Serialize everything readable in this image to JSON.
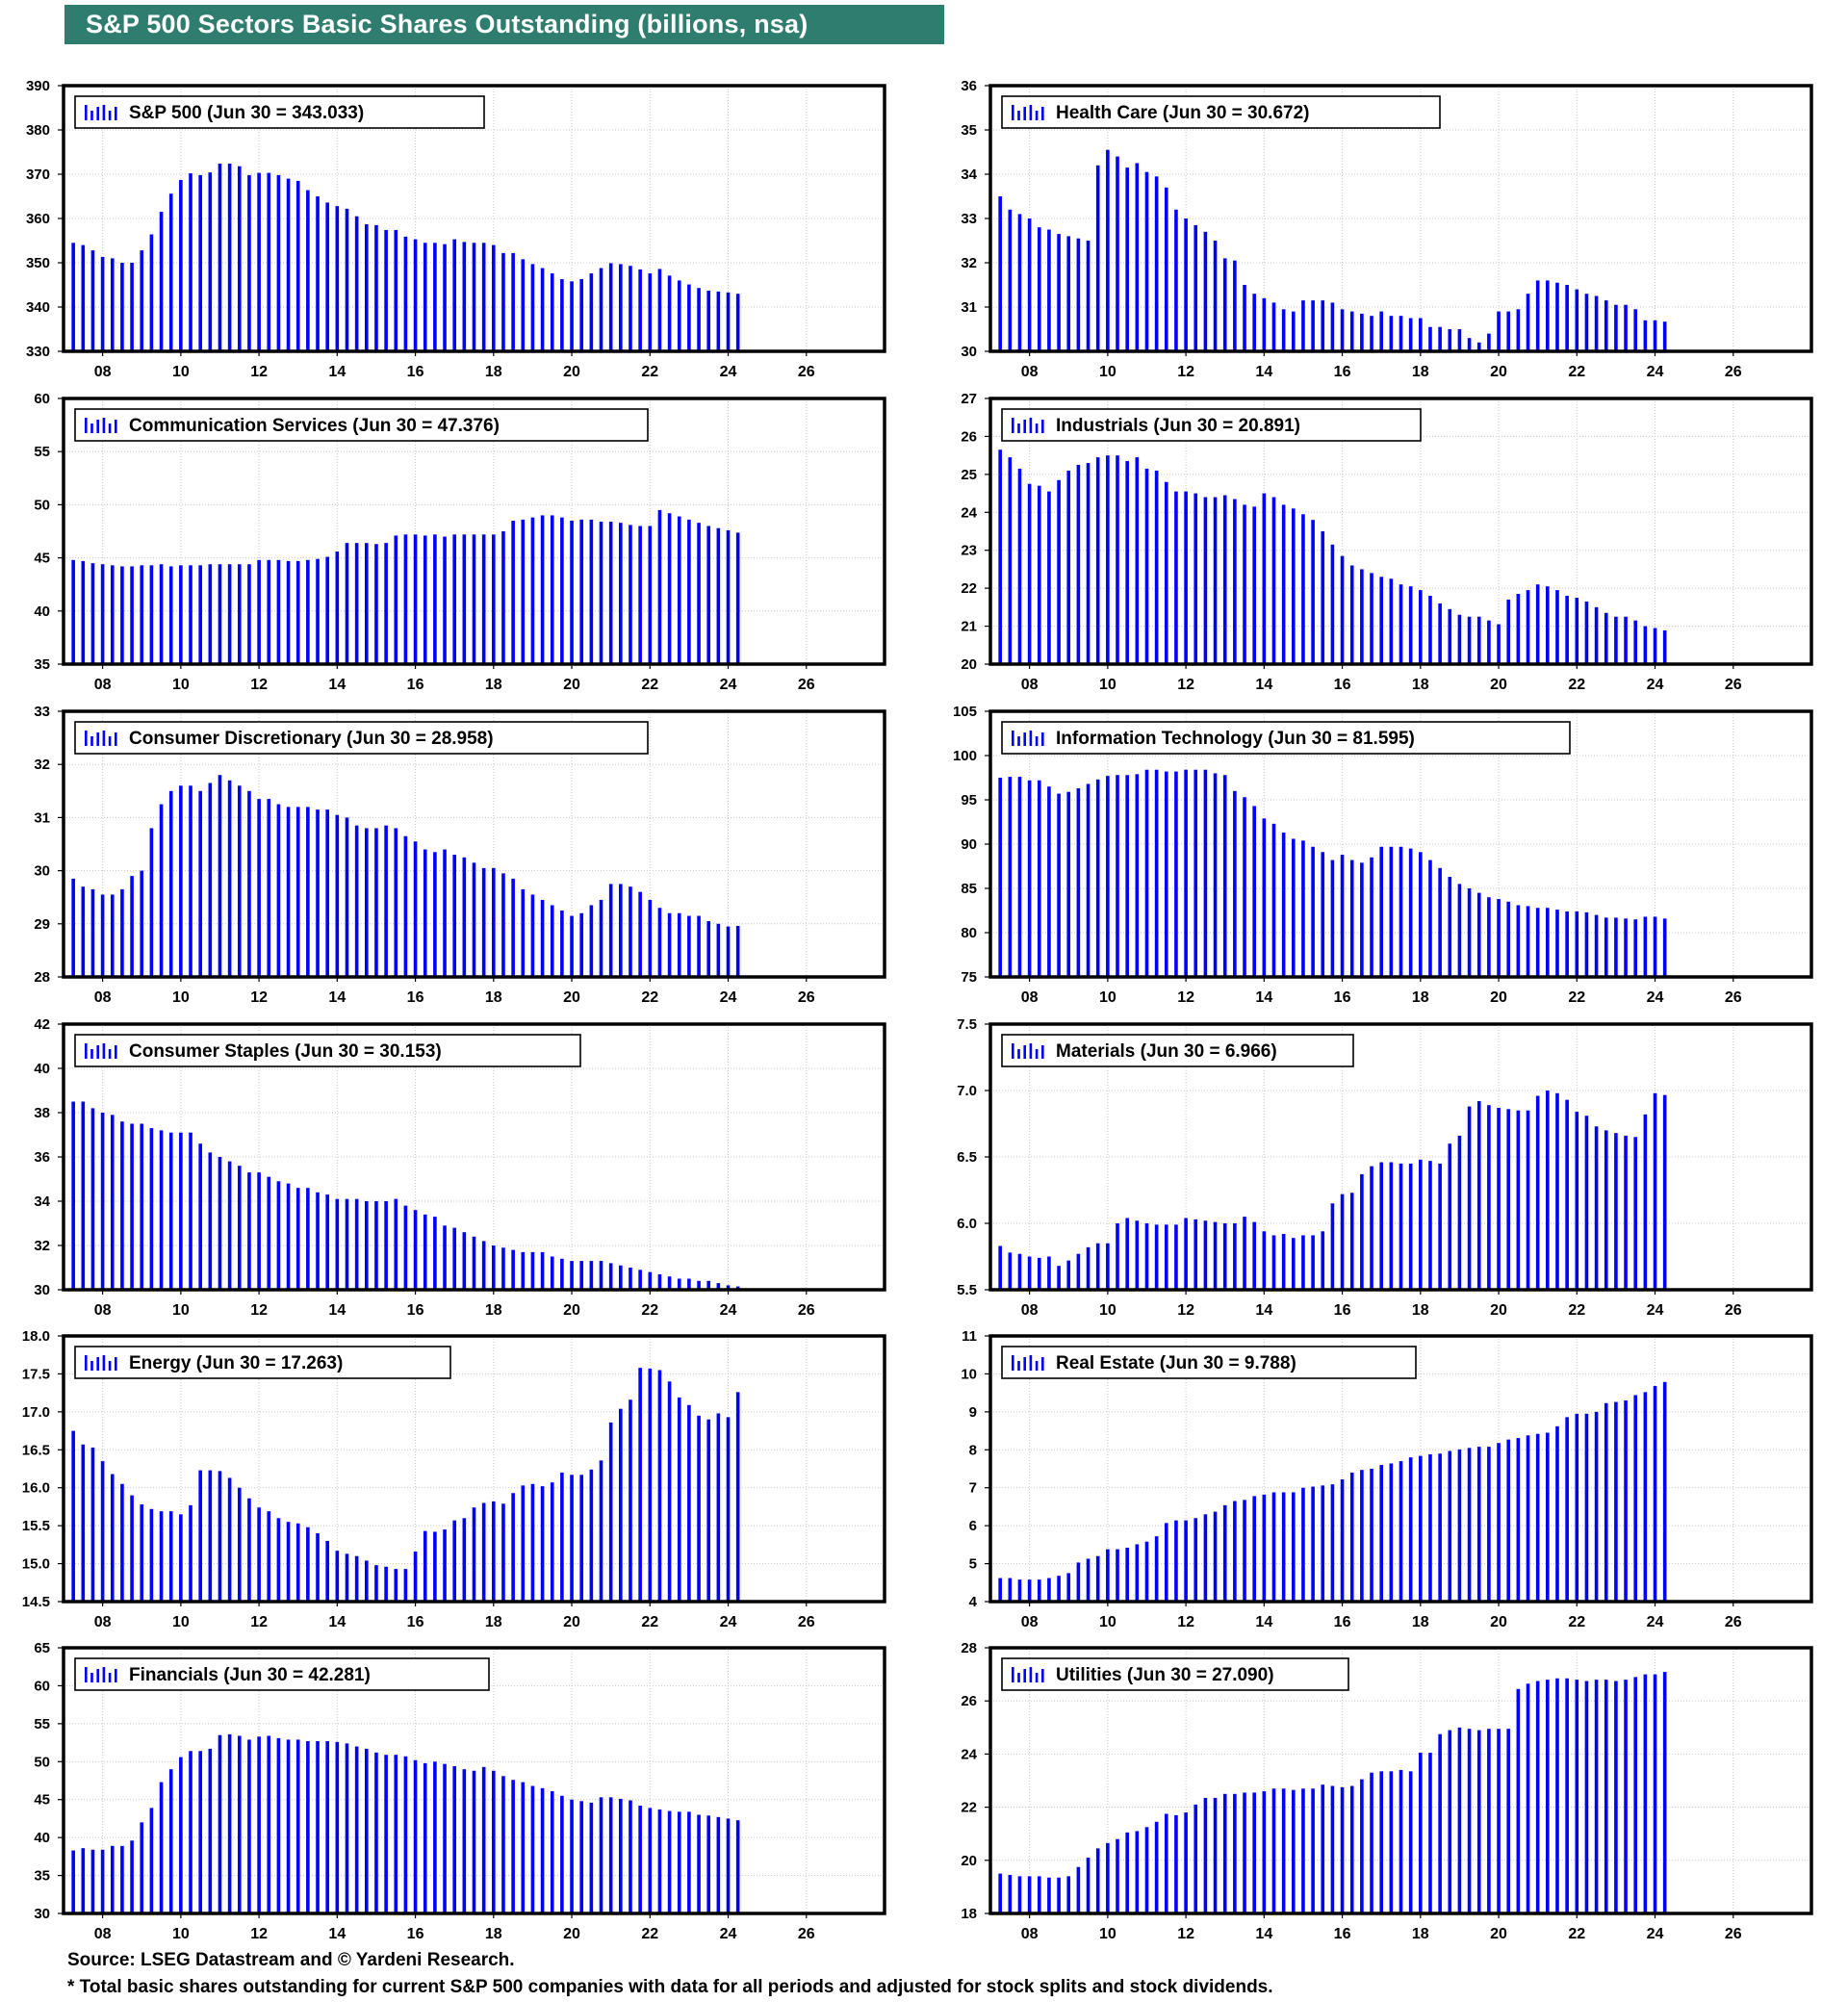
{
  "title": "S&P 500 Sectors Basic Shares Outstanding (billions, nsa)",
  "footer": {
    "source": "Source: LSEG Datastream and © Yardeni Research.",
    "note": "* Total basic shares outstanding for current S&P 500 companies with data for all periods and adjusted for stock splits and stock dividends."
  },
  "colors": {
    "bar": "#0000ff",
    "banner": "#2e7d6e",
    "grid": "#c8c8c8",
    "frame": "#000000"
  },
  "x_axis": {
    "ticks": [
      "08",
      "10",
      "12",
      "14",
      "16",
      "18",
      "20",
      "22",
      "24",
      "26"
    ],
    "start_year": 2007.0,
    "end_year": 2028.0
  },
  "chart_data": [
    {
      "type": "bar",
      "title": "S&P 500 (Jun 30 = 343.033)",
      "legend": "S&P 500 (Jun 30 = 343.033)",
      "ylim": [
        330,
        390
      ],
      "yticks": [
        "390",
        "380",
        "370",
        "360",
        "350",
        "340",
        "330"
      ],
      "x_start": 2007.25,
      "x_step": 0.25,
      "values": [
        354.5,
        354,
        352.8,
        351.3,
        351,
        350,
        350,
        352.8,
        356.4,
        361.5,
        365.6,
        368.7,
        370.2,
        369.8,
        370.4,
        372.4,
        372.4,
        371.8,
        369.8,
        370.3,
        370.3,
        369.8,
        369,
        368.5,
        366.4,
        365,
        363.6,
        362.8,
        362.2,
        360.5,
        358.7,
        358.5,
        357.4,
        357.4,
        355.9,
        355.3,
        354.5,
        354.5,
        354.2,
        355.3,
        354.7,
        354.5,
        354.5,
        354,
        352.2,
        352.2,
        350.8,
        349.7,
        348.8,
        347.6,
        346.3,
        345.8,
        346.3,
        347.6,
        348.8,
        349.9,
        349.7,
        349.3,
        348.5,
        347.6,
        348.6,
        347.1,
        346,
        345.1,
        344.3,
        343.7,
        343.5,
        343.3,
        343
      ]
    },
    {
      "type": "bar",
      "title": "Health Care (Jun 30 = 30.672)",
      "legend": "Health Care (Jun 30 = 30.672)",
      "ylim": [
        30,
        36
      ],
      "yticks": [
        "36",
        "35",
        "34",
        "33",
        "32",
        "31",
        "30"
      ],
      "x_start": 2007.25,
      "x_step": 0.25,
      "values": [
        33.5,
        33.2,
        33.1,
        33,
        32.8,
        32.75,
        32.65,
        32.6,
        32.55,
        32.5,
        34.2,
        34.55,
        34.4,
        34.15,
        34.25,
        34.05,
        33.95,
        33.7,
        33.2,
        33,
        32.85,
        32.7,
        32.5,
        32.1,
        32.05,
        31.5,
        31.3,
        31.2,
        31.1,
        30.95,
        30.9,
        31.15,
        31.15,
        31.15,
        31.1,
        30.95,
        30.9,
        30.85,
        30.8,
        30.9,
        30.8,
        30.8,
        30.75,
        30.75,
        30.55,
        30.55,
        30.5,
        30.5,
        30.3,
        30.2,
        30.4,
        30.9,
        30.9,
        30.95,
        31.3,
        31.6,
        31.6,
        31.55,
        31.5,
        31.4,
        31.3,
        31.25,
        31.15,
        31.05,
        31.05,
        30.95,
        30.7,
        30.7,
        30.67
      ]
    },
    {
      "type": "bar",
      "title": "Communication Services (Jun 30 = 47.376)",
      "legend": "Communication Services (Jun 30 = 47.376)",
      "ylim": [
        35,
        60
      ],
      "yticks": [
        "60",
        "55",
        "50",
        "45",
        "40",
        "35"
      ],
      "x_start": 2007.25,
      "x_step": 0.25,
      "values": [
        44.8,
        44.7,
        44.5,
        44.4,
        44.3,
        44.2,
        44.2,
        44.3,
        44.3,
        44.4,
        44.2,
        44.3,
        44.3,
        44.3,
        44.4,
        44.4,
        44.4,
        44.4,
        44.4,
        44.8,
        44.8,
        44.8,
        44.7,
        44.7,
        44.8,
        44.9,
        45.1,
        45.6,
        46.4,
        46.4,
        46.4,
        46.3,
        46.4,
        47.1,
        47.2,
        47.2,
        47.1,
        47.2,
        47.0,
        47.2,
        47.2,
        47.2,
        47.2,
        47.2,
        47.5,
        48.5,
        48.6,
        48.8,
        49.0,
        49.0,
        48.8,
        48.5,
        48.6,
        48.6,
        48.4,
        48.4,
        48.3,
        48.1,
        48.0,
        48.0,
        49.5,
        49.2,
        48.9,
        48.6,
        48.3,
        48.0,
        47.8,
        47.6,
        47.376
      ]
    },
    {
      "type": "bar",
      "title": "Industrials (Jun 30 = 20.891)",
      "legend": "Industrials (Jun 30 = 20.891)",
      "ylim": [
        20,
        27
      ],
      "yticks": [
        "27",
        "26",
        "25",
        "24",
        "23",
        "22",
        "21",
        "20"
      ],
      "x_start": 2007.25,
      "x_step": 0.25,
      "values": [
        25.65,
        25.45,
        25.15,
        24.75,
        24.7,
        24.55,
        24.85,
        25.1,
        25.25,
        25.3,
        25.45,
        25.5,
        25.5,
        25.35,
        25.45,
        25.15,
        25.1,
        24.8,
        24.55,
        24.55,
        24.5,
        24.4,
        24.4,
        24.45,
        24.35,
        24.2,
        24.15,
        24.5,
        24.4,
        24.2,
        24.1,
        23.95,
        23.8,
        23.5,
        23.15,
        22.85,
        22.6,
        22.5,
        22.4,
        22.3,
        22.25,
        22.1,
        22.05,
        21.95,
        21.8,
        21.6,
        21.45,
        21.3,
        21.25,
        21.25,
        21.15,
        21.05,
        21.7,
        21.85,
        21.95,
        22.1,
        22.05,
        21.95,
        21.8,
        21.75,
        21.65,
        21.5,
        21.35,
        21.25,
        21.25,
        21.15,
        21.0,
        20.95,
        20.89
      ]
    },
    {
      "type": "bar",
      "title": "Consumer Discretionary (Jun 30 = 28.958)",
      "legend": "Consumer Discretionary (Jun 30 = 28.958)",
      "ylim": [
        28,
        33
      ],
      "yticks": [
        "33",
        "32",
        "31",
        "30",
        "29",
        "28"
      ],
      "x_start": 2007.25,
      "x_step": 0.25,
      "values": [
        29.85,
        29.7,
        29.65,
        29.55,
        29.55,
        29.65,
        29.9,
        30.0,
        30.8,
        31.25,
        31.5,
        31.6,
        31.6,
        31.5,
        31.65,
        31.8,
        31.7,
        31.6,
        31.5,
        31.35,
        31.35,
        31.25,
        31.2,
        31.2,
        31.2,
        31.15,
        31.15,
        31.05,
        31.0,
        30.85,
        30.8,
        30.8,
        30.85,
        30.8,
        30.65,
        30.55,
        30.4,
        30.35,
        30.4,
        30.3,
        30.25,
        30.15,
        30.05,
        30.05,
        29.95,
        29.85,
        29.65,
        29.55,
        29.45,
        29.35,
        29.25,
        29.15,
        29.2,
        29.35,
        29.45,
        29.75,
        29.75,
        29.7,
        29.6,
        29.45,
        29.3,
        29.2,
        29.2,
        29.15,
        29.15,
        29.05,
        29.0,
        28.95,
        28.96
      ]
    },
    {
      "type": "bar",
      "title": "Information Technology (Jun 30 = 81.595)",
      "legend": "Information Technology (Jun 30 = 81.595)",
      "ylim": [
        75,
        105
      ],
      "yticks": [
        "105",
        "100",
        "95",
        "90",
        "85",
        "80",
        "75"
      ],
      "x_start": 2007.25,
      "x_step": 0.25,
      "values": [
        97.5,
        97.6,
        97.6,
        97.2,
        97.2,
        96.5,
        95.7,
        95.9,
        96.3,
        96.8,
        97.3,
        97.7,
        97.8,
        97.8,
        97.9,
        98.4,
        98.4,
        98.2,
        98.2,
        98.4,
        98.4,
        98.4,
        98.0,
        97.8,
        96.0,
        95.3,
        94.3,
        92.9,
        92.3,
        91.3,
        90.6,
        90.4,
        89.7,
        89.1,
        88.2,
        88.8,
        88.2,
        87.9,
        88.5,
        89.7,
        89.7,
        89.7,
        89.5,
        89.1,
        88.2,
        87.3,
        86.3,
        85.5,
        85.0,
        84.5,
        84.0,
        83.8,
        83.5,
        83.1,
        83.0,
        82.8,
        82.8,
        82.6,
        82.4,
        82.4,
        82.3,
        82.0,
        81.7,
        81.7,
        81.6,
        81.5,
        81.8,
        81.8,
        81.595
      ]
    },
    {
      "type": "bar",
      "title": "Consumer Staples (Jun 30 = 30.153)",
      "legend": "Consumer Staples (Jun 30 = 30.153)",
      "ylim": [
        30,
        42
      ],
      "yticks": [
        "42",
        "40",
        "38",
        "36",
        "34",
        "32",
        "30"
      ],
      "x_start": 2007.25,
      "x_step": 0.25,
      "values": [
        38.5,
        38.5,
        38.2,
        38.0,
        37.9,
        37.6,
        37.5,
        37.5,
        37.3,
        37.2,
        37.1,
        37.1,
        37.1,
        36.6,
        36.2,
        36.0,
        35.8,
        35.6,
        35.3,
        35.3,
        35.1,
        34.9,
        34.8,
        34.6,
        34.6,
        34.4,
        34.3,
        34.1,
        34.1,
        34.1,
        34.0,
        34.0,
        34.0,
        34.1,
        33.8,
        33.6,
        33.4,
        33.3,
        32.9,
        32.8,
        32.6,
        32.4,
        32.2,
        32.0,
        31.9,
        31.8,
        31.7,
        31.7,
        31.7,
        31.5,
        31.4,
        31.3,
        31.3,
        31.3,
        31.3,
        31.2,
        31.1,
        31.0,
        30.9,
        30.8,
        30.7,
        30.6,
        30.5,
        30.5,
        30.4,
        30.4,
        30.3,
        30.2,
        30.15
      ]
    },
    {
      "type": "bar",
      "title": "Materials (Jun 30 = 6.966)",
      "legend": "Materials (Jun 30 = 6.966)",
      "ylim": [
        5.5,
        7.5
      ],
      "yticks": [
        "7.5",
        "7.0",
        "6.5",
        "6.0",
        "5.5"
      ],
      "x_start": 2007.25,
      "x_step": 0.25,
      "values": [
        5.83,
        5.78,
        5.77,
        5.75,
        5.74,
        5.75,
        5.68,
        5.72,
        5.77,
        5.82,
        5.85,
        5.85,
        6.0,
        6.04,
        6.02,
        6.0,
        5.99,
        5.99,
        5.99,
        6.04,
        6.03,
        6.02,
        6.01,
        6.0,
        6.0,
        6.05,
        6.01,
        5.94,
        5.91,
        5.92,
        5.89,
        5.91,
        5.91,
        5.94,
        6.15,
        6.22,
        6.23,
        6.37,
        6.43,
        6.46,
        6.46,
        6.45,
        6.45,
        6.48,
        6.47,
        6.45,
        6.6,
        6.66,
        6.88,
        6.92,
        6.89,
        6.87,
        6.86,
        6.85,
        6.85,
        6.96,
        7.0,
        6.98,
        6.93,
        6.84,
        6.81,
        6.73,
        6.7,
        6.68,
        6.66,
        6.65,
        6.82,
        6.98,
        6.966
      ]
    },
    {
      "type": "bar",
      "title": "Energy (Jun 30 = 17.263)",
      "legend": "Energy (Jun 30 = 17.263)",
      "ylim": [
        14.5,
        18.0
      ],
      "yticks": [
        "18.0",
        "17.5",
        "17.0",
        "16.5",
        "16.0",
        "15.5",
        "15.0",
        "14.5"
      ],
      "x_start": 2007.25,
      "x_step": 0.25,
      "values": [
        16.75,
        16.57,
        16.53,
        16.35,
        16.18,
        16.05,
        15.9,
        15.78,
        15.72,
        15.69,
        15.69,
        15.65,
        15.77,
        16.23,
        16.23,
        16.22,
        16.13,
        16.0,
        15.86,
        15.74,
        15.69,
        15.6,
        15.55,
        15.53,
        15.48,
        15.4,
        15.3,
        15.17,
        15.13,
        15.1,
        15.04,
        14.98,
        14.96,
        14.93,
        14.93,
        15.16,
        15.43,
        15.42,
        15.45,
        15.57,
        15.6,
        15.74,
        15.8,
        15.82,
        15.79,
        15.93,
        16.03,
        16.05,
        16.02,
        16.07,
        16.2,
        16.17,
        16.17,
        16.24,
        16.36,
        16.86,
        17.04,
        17.16,
        17.58,
        17.57,
        17.55,
        17.4,
        17.19,
        17.09,
        16.95,
        16.9,
        16.98,
        16.93,
        17.26
      ]
    },
    {
      "type": "bar",
      "title": "Real Estate (Jun 30 = 9.788)",
      "legend": "Real Estate (Jun 30 = 9.788)",
      "ylim": [
        4,
        11
      ],
      "yticks": [
        "11",
        "10",
        "9",
        "8",
        "7",
        "6",
        "5",
        "4"
      ],
      "x_start": 2007.25,
      "x_step": 0.25,
      "values": [
        4.62,
        4.62,
        4.58,
        4.58,
        4.58,
        4.62,
        4.68,
        4.75,
        5.03,
        5.13,
        5.2,
        5.38,
        5.38,
        5.42,
        5.51,
        5.58,
        5.72,
        6.07,
        6.14,
        6.14,
        6.2,
        6.3,
        6.37,
        6.54,
        6.65,
        6.68,
        6.78,
        6.82,
        6.88,
        6.88,
        6.88,
        7.0,
        7.03,
        7.06,
        7.09,
        7.22,
        7.4,
        7.47,
        7.5,
        7.6,
        7.64,
        7.7,
        7.8,
        7.84,
        7.88,
        7.9,
        7.97,
        8.01,
        8.05,
        8.08,
        8.08,
        8.18,
        8.27,
        8.31,
        8.38,
        8.42,
        8.45,
        8.62,
        8.86,
        8.95,
        8.95,
        9.0,
        9.23,
        9.26,
        9.3,
        9.44,
        9.52,
        9.68,
        9.788
      ]
    },
    {
      "type": "bar",
      "title": "Financials (Jun 30 = 42.281)",
      "legend": "Financials (Jun 30 = 42.281)",
      "ylim": [
        30,
        65
      ],
      "yticks": [
        "65",
        "60",
        "55",
        "50",
        "45",
        "40",
        "35",
        "30"
      ],
      "x_start": 2007.25,
      "x_step": 0.25,
      "values": [
        38.3,
        38.6,
        38.4,
        38.4,
        38.9,
        38.9,
        39.6,
        42.0,
        43.9,
        47.3,
        49.0,
        50.6,
        51.4,
        51.4,
        51.7,
        53.5,
        53.6,
        53.4,
        52.9,
        53.3,
        53.4,
        53.1,
        52.9,
        52.9,
        52.7,
        52.7,
        52.7,
        52.6,
        52.4,
        52.0,
        51.7,
        51.2,
        50.9,
        50.9,
        50.7,
        50.2,
        49.8,
        50.0,
        49.7,
        49.4,
        49.0,
        48.8,
        49.3,
        48.8,
        48.1,
        47.6,
        47.3,
        46.8,
        46.5,
        46.1,
        45.5,
        45.0,
        44.8,
        44.6,
        45.3,
        45.3,
        45.1,
        44.9,
        44.2,
        43.9,
        43.7,
        43.5,
        43.4,
        43.4,
        43.0,
        42.9,
        42.7,
        42.5,
        42.28
      ]
    },
    {
      "type": "bar",
      "title": "Utilities (Jun 30 = 27.090)",
      "legend": "Utilities (Jun 30 = 27.090)",
      "ylim": [
        18,
        28
      ],
      "yticks": [
        "28",
        "26",
        "24",
        "22",
        "20",
        "18"
      ],
      "x_start": 2007.25,
      "x_step": 0.25,
      "values": [
        19.5,
        19.45,
        19.4,
        19.4,
        19.4,
        19.35,
        19.35,
        19.4,
        19.75,
        20.1,
        20.45,
        20.65,
        20.8,
        21.05,
        21.1,
        21.25,
        21.45,
        21.75,
        21.7,
        21.8,
        22.1,
        22.35,
        22.35,
        22.5,
        22.5,
        22.55,
        22.55,
        22.6,
        22.7,
        22.7,
        22.65,
        22.7,
        22.7,
        22.85,
        22.8,
        22.75,
        22.8,
        23.05,
        23.3,
        23.35,
        23.35,
        23.4,
        23.35,
        24.05,
        24.05,
        24.75,
        24.9,
        25.0,
        24.95,
        24.9,
        24.95,
        24.95,
        24.95,
        26.45,
        26.65,
        26.75,
        26.8,
        26.85,
        26.85,
        26.8,
        26.75,
        26.8,
        26.8,
        26.75,
        26.8,
        26.9,
        27.0,
        27.0,
        27.09
      ]
    }
  ]
}
